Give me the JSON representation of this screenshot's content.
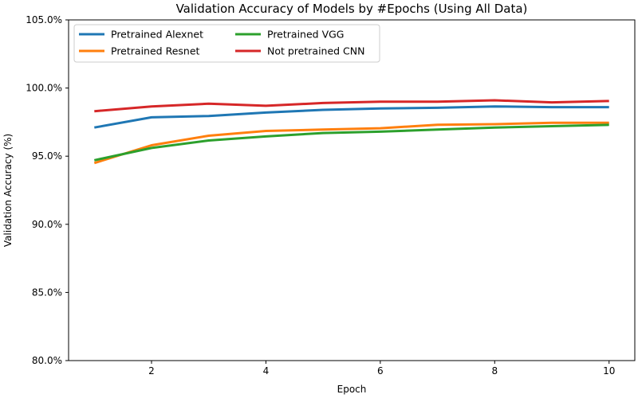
{
  "chart_data": {
    "type": "line",
    "title": "Validation Accuracy of Models by #Epochs (Using All Data)",
    "xlabel": "Epoch",
    "ylabel": "Validation Accuracy (%)",
    "xlim": [
      0.55,
      10.45
    ],
    "ylim": [
      80.0,
      105.0
    ],
    "x_ticks": [
      2,
      4,
      6,
      8,
      10
    ],
    "y_ticks": [
      80.0,
      85.0,
      90.0,
      95.0,
      100.0,
      105.0
    ],
    "x_tick_labels": [
      "2",
      "4",
      "6",
      "8",
      "10"
    ],
    "y_tick_labels": [
      "80.0%",
      "85.0%",
      "90.0%",
      "95.0%",
      "100.0%",
      "105.0%"
    ],
    "grid": false,
    "legend_position": "top-left",
    "x": [
      1,
      2,
      3,
      4,
      5,
      6,
      7,
      8,
      9,
      10
    ],
    "series": [
      {
        "name": "Pretrained Alexnet",
        "color": "#1f77b4",
        "values": [
          97.1,
          97.85,
          97.95,
          98.2,
          98.4,
          98.5,
          98.55,
          98.65,
          98.6,
          98.6
        ]
      },
      {
        "name": "Pretrained Resnet",
        "color": "#ff7f0e",
        "values": [
          94.5,
          95.8,
          96.5,
          96.85,
          96.95,
          97.05,
          97.3,
          97.35,
          97.45,
          97.45
        ]
      },
      {
        "name": "Pretrained VGG",
        "color": "#2ca02c",
        "values": [
          94.7,
          95.6,
          96.15,
          96.45,
          96.7,
          96.8,
          96.95,
          97.1,
          97.2,
          97.3
        ]
      },
      {
        "name": "Not pretrained CNN",
        "color": "#d62728",
        "values": [
          98.3,
          98.65,
          98.85,
          98.7,
          98.9,
          99.0,
          99.0,
          99.1,
          98.95,
          99.05
        ]
      }
    ]
  }
}
